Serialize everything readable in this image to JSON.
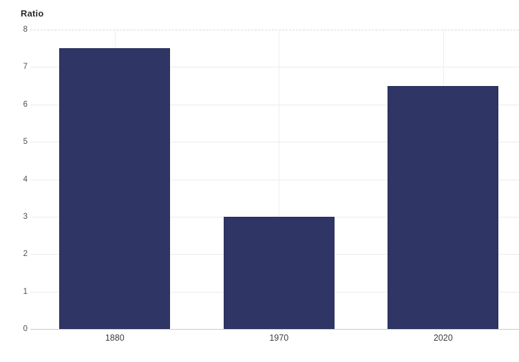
{
  "chart_data": {
    "type": "bar",
    "title": "",
    "ylabel": "Ratio",
    "xlabel": "",
    "categories": [
      "1880",
      "1970",
      "2020"
    ],
    "values": [
      7.5,
      3,
      6.5
    ],
    "ylim": [
      0,
      8
    ],
    "y_ticks": [
      8,
      7,
      6,
      5,
      4,
      3,
      2,
      1,
      0
    ],
    "grid": "on",
    "legend": "none",
    "colors": {
      "bar": "#2f3564",
      "gridline": "#ebebeb",
      "top_gridline_dashed": "#d8d8d8",
      "vertical_gridline": "#efefef",
      "axis_baseline": "#c9c9c9",
      "axis_title_text": "#2b2b2b",
      "tick_text": "#4d4d4d",
      "category_text": "#3c3c3c",
      "background": "#ffffff"
    }
  }
}
